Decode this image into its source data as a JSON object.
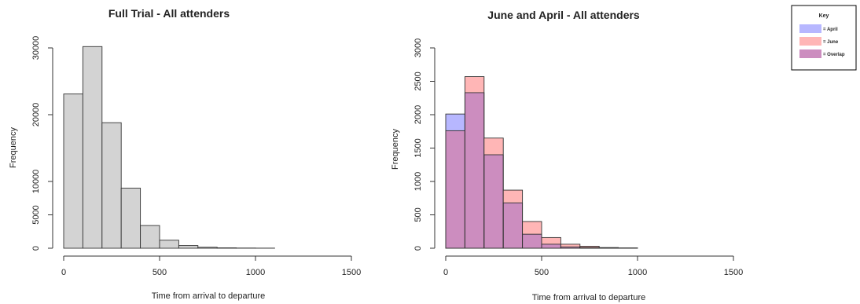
{
  "colors": {
    "full_bar": "#d3d3d3",
    "april": "#b7b7ff",
    "june": "#ffb6b6",
    "overlap": "#cc8dbf",
    "bar_stroke": "#333333"
  },
  "chart_data": [
    {
      "type": "bar",
      "title": "Full Trial - All attenders",
      "xlabel": "Time from arrival to departure",
      "ylabel": "Frequency",
      "xlim": [
        0,
        1500
      ],
      "ylim": [
        0,
        30000
      ],
      "x_ticks": [
        0,
        500,
        1000,
        1500
      ],
      "x_tick_labels": [
        "0",
        "500",
        "1000",
        "1500"
      ],
      "y_ticks": [
        0,
        5000,
        10000,
        20000,
        30000
      ],
      "y_tick_labels": [
        "0",
        "5000",
        "10000",
        "20000",
        "30000"
      ],
      "bin_edges": [
        0,
        100,
        200,
        300,
        400,
        500,
        600,
        700,
        800,
        900,
        1000,
        1100
      ],
      "series": [
        {
          "values": [
            23100,
            30200,
            18800,
            9000,
            3400,
            1200,
            400,
            150,
            60,
            30,
            15
          ]
        }
      ]
    },
    {
      "type": "bar",
      "title": "June and April - All attenders",
      "xlabel": "Time from arrival to departure",
      "ylabel": "Frequency",
      "xlim": [
        0,
        1500
      ],
      "ylim": [
        0,
        3000
      ],
      "x_ticks": [
        0,
        500,
        1000,
        1500
      ],
      "x_tick_labels": [
        "0",
        "500",
        "1000",
        "1500"
      ],
      "y_ticks": [
        0,
        500,
        1000,
        1500,
        2000,
        2500,
        3000
      ],
      "y_tick_labels": [
        "0",
        "500",
        "1000",
        "1500",
        "2000",
        "2500",
        "3000"
      ],
      "bin_edges": [
        0,
        100,
        200,
        300,
        400,
        500,
        600,
        700,
        800,
        900,
        1000
      ],
      "series": [
        {
          "name": "April",
          "values": [
            2010,
            2330,
            1400,
            680,
            210,
            60,
            20,
            10,
            5,
            2
          ]
        },
        {
          "name": "June",
          "values": [
            1760,
            2570,
            1650,
            870,
            400,
            160,
            60,
            30,
            10,
            5
          ]
        }
      ]
    }
  ],
  "key": {
    "title": "Key",
    "items": [
      {
        "label": "= April",
        "color": "#b7b7ff"
      },
      {
        "label": "= June",
        "color": "#ffb6b6"
      },
      {
        "label": "= Overlap",
        "color": "#cc8dbf"
      }
    ]
  }
}
